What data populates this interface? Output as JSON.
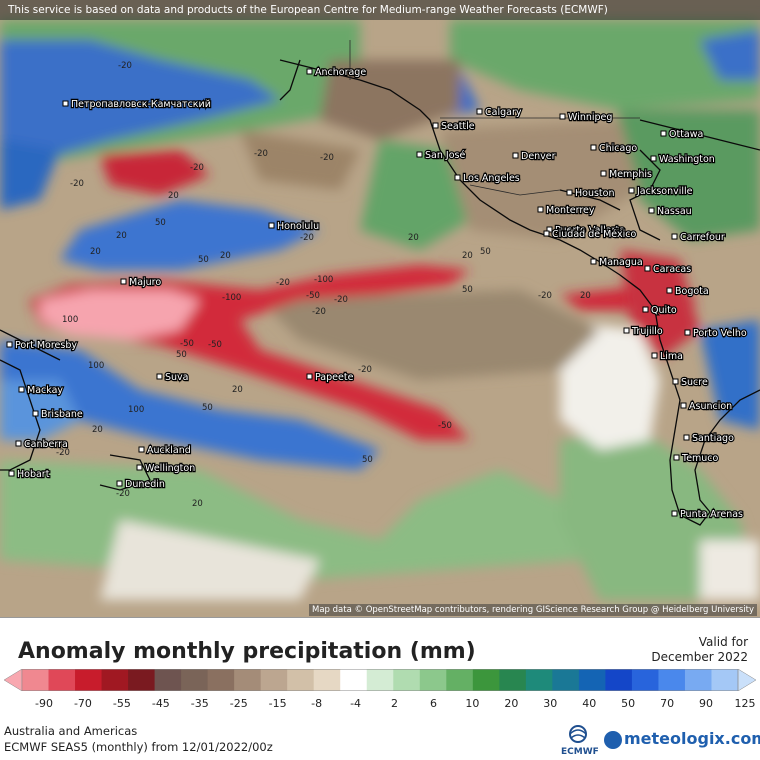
{
  "header": {
    "attribution": "This service is based on data and products of the European Centre for Medium-range Weather Forecasts (ECMWF)"
  },
  "map": {
    "osm_credit": "Map data © OpenStreetMap contributors, rendering GIScience Research Group @ Heidelberg University",
    "cities": [
      {
        "name": "Anchorage"
      },
      {
        "name": "Петропавловск-Камчатский"
      },
      {
        "name": "Calgary"
      },
      {
        "name": "Winnipeg"
      },
      {
        "name": "Seattle"
      },
      {
        "name": "Ottawa"
      },
      {
        "name": "Chicago"
      },
      {
        "name": "San José"
      },
      {
        "name": "Denver"
      },
      {
        "name": "Washington"
      },
      {
        "name": "Memphis"
      },
      {
        "name": "Los Angeles"
      },
      {
        "name": "Houston"
      },
      {
        "name": "Jacksonville"
      },
      {
        "name": "Monterrey"
      },
      {
        "name": "Nassau"
      },
      {
        "name": "Honolulu"
      },
      {
        "name": "Puerto Vallarta"
      },
      {
        "name": "Ciudad de México"
      },
      {
        "name": "Carrefour"
      },
      {
        "name": "Managua"
      },
      {
        "name": "Caracas"
      },
      {
        "name": "Majuro"
      },
      {
        "name": "Bogota"
      },
      {
        "name": "Quito"
      },
      {
        "name": "Trujillo"
      },
      {
        "name": "Porto Velho"
      },
      {
        "name": "Port Moresby"
      },
      {
        "name": "Lima"
      },
      {
        "name": "Suva"
      },
      {
        "name": "Papeete"
      },
      {
        "name": "Sucre"
      },
      {
        "name": "Mackay"
      },
      {
        "name": "Asuncion"
      },
      {
        "name": "Brisbane"
      },
      {
        "name": "Santiago"
      },
      {
        "name": "Canberra"
      },
      {
        "name": "Auckland"
      },
      {
        "name": "Wellington"
      },
      {
        "name": "Temuco"
      },
      {
        "name": "Hobart"
      },
      {
        "name": "Dunedin"
      },
      {
        "name": "Punta Arenas"
      }
    ],
    "contour_labels": [
      "-20",
      "-20",
      "-20",
      "20",
      "50",
      "20",
      "-20",
      "-20",
      "20",
      "50",
      "-20",
      "20",
      "20",
      "50",
      "-100",
      "-20",
      "-20",
      "50",
      "-50",
      "-20",
      "20",
      "100",
      "-100",
      "-20",
      "-50",
      "-20",
      "50",
      "100",
      "50",
      "100",
      "-50",
      "-50",
      "20",
      "20",
      "-20",
      "-20",
      "50",
      "20",
      "20"
    ]
  },
  "legend": {
    "title": "Anomaly monthly precipitation (mm)",
    "valid_line1": "Valid for",
    "valid_line2": "December 2022",
    "ticks": [
      "-90",
      "-70",
      "-55",
      "-45",
      "-35",
      "-25",
      "-15",
      "-8",
      "-4",
      "2",
      "6",
      "10",
      "20",
      "30",
      "40",
      "50",
      "70",
      "90",
      "125"
    ],
    "colors": [
      "#f8a8b0",
      "#f08890",
      "#e04858",
      "#c81c2c",
      "#a01822",
      "#7a1a20",
      "#6e5450",
      "#7a6458",
      "#8a7060",
      "#a48c78",
      "#bca690",
      "#d2c0a8",
      "#e6d8c4",
      "#ffffff",
      "#d4ecd4",
      "#b0dcb0",
      "#8cc88c",
      "#64b064",
      "#3c963c",
      "#288650",
      "#1e8a7a",
      "#1a7896",
      "#1464b4",
      "#1446c8",
      "#2864dc",
      "#4a88ec",
      "#78aaf2",
      "#a4c8f6",
      "#cae0fa"
    ]
  },
  "footer": {
    "region": "Australia and Americas",
    "model": "ECMWF SEAS5 (monthly) from 12/01/2022/00z",
    "ecmwf_text": "ECMWF",
    "brand": "meteologix.com"
  }
}
